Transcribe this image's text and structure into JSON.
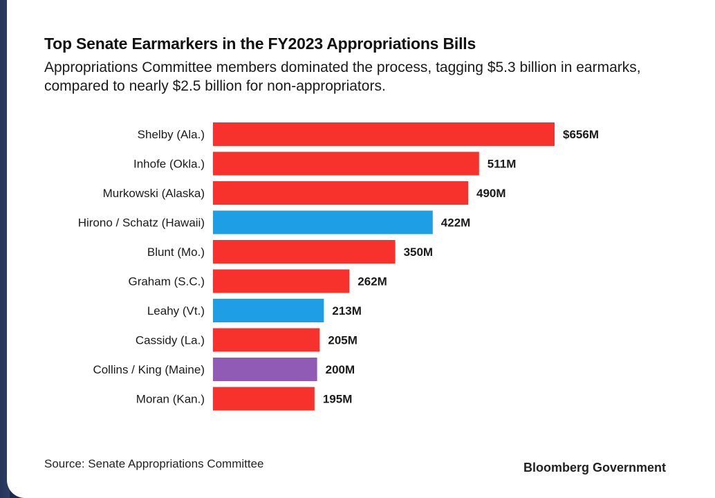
{
  "chart_data": {
    "type": "bar",
    "orientation": "horizontal",
    "title": "Top Senate Earmarkers in the FY2023 Appropriations Bills",
    "subtitle": "Appropriations Committee members dominated the process, tagging $5.3 billion in earmarks, compared to nearly $2.5 billion for non-appropriators.",
    "categories": [
      "Shelby (Ala.)",
      "Inhofe (Okla.)",
      "Murkowski (Alaska)",
      "Hirono / Schatz (Hawaii)",
      "Blunt (Mo.)",
      "Graham (S.C.)",
      "Leahy (Vt.)",
      "Cassidy (La.)",
      "Collins / King (Maine)",
      "Moran (Kan.)"
    ],
    "values": [
      656,
      511,
      490,
      422,
      350,
      262,
      213,
      205,
      200,
      195
    ],
    "value_labels": [
      "$656M",
      "511M",
      "490M",
      "422M",
      "350M",
      "262M",
      "213M",
      "205M",
      "200M",
      "195M"
    ],
    "bar_colors": [
      "#f7312b",
      "#f7312b",
      "#f7312b",
      "#1e9ee4",
      "#f7312b",
      "#f7312b",
      "#1e9ee4",
      "#f7312b",
      "#8f5bb5",
      "#f7312b"
    ],
    "unit": "million dollars",
    "grid": false,
    "legend": "none"
  },
  "footer": {
    "source": "Source: Senate Appropriations Committee",
    "brand": "Bloomberg Government"
  }
}
